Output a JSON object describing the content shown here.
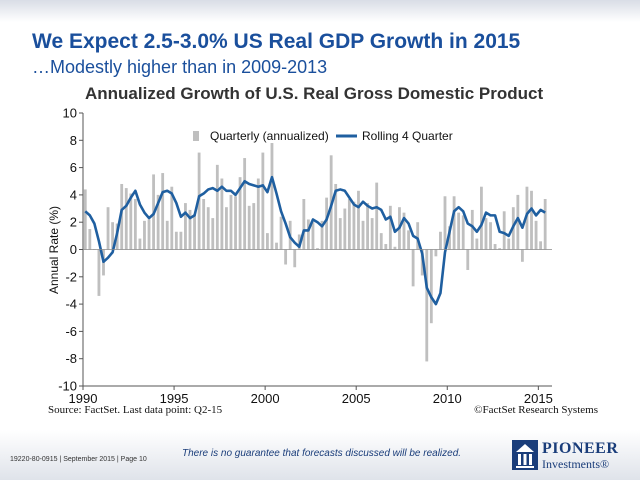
{
  "slide": {
    "headline": "We Expect 2.5-3.0% US Real GDP Growth in 2015",
    "subhead": "…Modestly higher than in 2009-2013",
    "source": "Source: FactSet. Last data point: Q2-15",
    "copyright": "©FactSet Research Systems",
    "disclaimer": "There is no guarantee that forecasts discussed will be realized.",
    "footer_id": "19220-80-0915 | September 2015 | Page 10",
    "logo": {
      "name": "PIONEER",
      "sub": "Investments®"
    }
  },
  "colors": {
    "brand": "#1a4f9c",
    "bars": "#bfbfbf",
    "line": "#1f5fa0",
    "axis": "#555555"
  },
  "chart_data": {
    "type": "bar",
    "title": "Annualized Growth of U.S. Real Gross Domestic Product",
    "xlabel": "",
    "ylabel": "Annual Rate (%)",
    "xlim": [
      1990,
      2015.75
    ],
    "ylim": [
      -10,
      10
    ],
    "xticks": [
      1990,
      1995,
      2000,
      2005,
      2010,
      2015
    ],
    "yticks": [
      -10,
      -8,
      -6,
      -4,
      -2,
      0,
      2,
      4,
      6,
      8,
      10
    ],
    "grid": false,
    "legend": "top",
    "series": [
      {
        "name": "Quarterly (annualized)",
        "kind": "bar",
        "start": 1990.0,
        "step": 0.25,
        "values": [
          4.4,
          1.5,
          0.0,
          -3.4,
          -1.9,
          3.1,
          2.0,
          1.9,
          4.8,
          4.5,
          4.1,
          3.7,
          0.8,
          2.1,
          2.2,
          5.5,
          4.0,
          5.6,
          2.1,
          4.6,
          1.3,
          1.3,
          3.4,
          2.9,
          2.6,
          7.1,
          3.7,
          3.1,
          2.3,
          6.2,
          5.2,
          3.1,
          4.0,
          3.9,
          5.3,
          6.7,
          3.2,
          3.4,
          5.2,
          7.1,
          1.2,
          7.8,
          0.5,
          2.4,
          -1.1,
          2.1,
          -1.3,
          1.1,
          3.7,
          2.2,
          2.0,
          0.1,
          2.1,
          3.8,
          6.9,
          4.8,
          2.3,
          3.0,
          3.7,
          3.5,
          4.3,
          2.1,
          3.4,
          2.3,
          4.9,
          1.2,
          0.4,
          3.2,
          0.2,
          3.1,
          2.7,
          1.4,
          -2.7,
          2.0,
          -1.9,
          -8.2,
          -5.4,
          -0.5,
          1.3,
          3.9,
          1.7,
          3.9,
          2.7,
          2.5,
          -1.5,
          2.9,
          0.8,
          4.6,
          2.3,
          2.0,
          0.4,
          0.1,
          2.8,
          0.8,
          3.1,
          4.0,
          -0.9,
          4.6,
          4.3,
          2.1,
          0.6,
          3.7
        ]
      },
      {
        "name": "Rolling 4 Quarter",
        "kind": "line",
        "start": 1990.0,
        "step": 0.25,
        "values": [
          2.8,
          2.5,
          1.9,
          0.6,
          -0.9,
          -0.6,
          -0.2,
          1.2,
          2.9,
          3.2,
          3.8,
          4.3,
          3.3,
          2.7,
          2.3,
          2.6,
          3.4,
          4.2,
          4.3,
          4.1,
          3.4,
          2.4,
          2.7,
          2.3,
          2.5,
          3.9,
          4.1,
          4.4,
          4.5,
          4.3,
          4.6,
          4.3,
          4.3,
          4.0,
          4.5,
          5.0,
          4.8,
          4.7,
          4.6,
          4.7,
          4.2,
          5.3,
          4.1,
          2.8,
          1.9,
          0.9,
          0.5,
          0.2,
          1.4,
          1.4,
          2.2,
          2.0,
          1.7,
          2.2,
          3.2,
          4.3,
          4.4,
          4.3,
          3.8,
          3.3,
          3.1,
          3.5,
          3.2,
          3.0,
          3.1,
          2.9,
          2.2,
          2.4,
          1.3,
          1.6,
          2.3,
          1.9,
          1.0,
          0.8,
          -0.3,
          -2.8,
          -3.5,
          -4.0,
          -3.2,
          -0.2,
          1.3,
          2.8,
          3.1,
          2.8,
          1.9,
          1.7,
          1.3,
          1.8,
          2.7,
          2.5,
          2.5,
          1.3,
          1.2,
          1.0,
          1.7,
          2.3,
          1.6,
          2.6,
          3.0,
          2.5,
          2.9,
          2.7
        ]
      }
    ]
  }
}
